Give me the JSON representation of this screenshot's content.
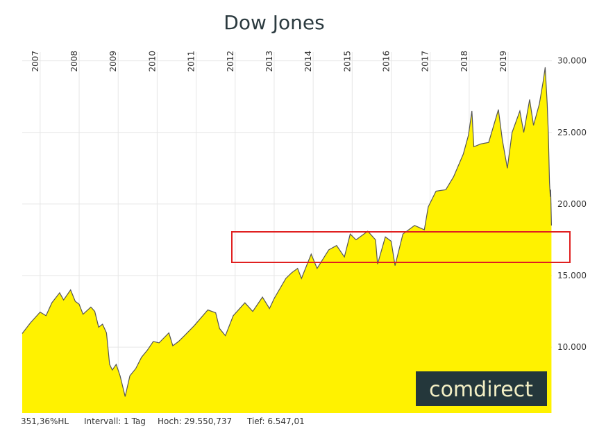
{
  "chart_data": {
    "type": "area",
    "title": "Dow Jones",
    "x": [
      2006.54,
      2006.75,
      2007.0,
      2007.15,
      2007.3,
      2007.5,
      2007.6,
      2007.78,
      2007.9,
      2008.0,
      2008.1,
      2008.3,
      2008.4,
      2008.5,
      2008.6,
      2008.7,
      2008.78,
      2008.85,
      2008.95,
      2009.05,
      2009.18,
      2009.3,
      2009.45,
      2009.6,
      2009.75,
      2009.9,
      2010.05,
      2010.3,
      2010.4,
      2010.55,
      2010.7,
      2010.95,
      2011.3,
      2011.5,
      2011.6,
      2011.75,
      2011.95,
      2012.25,
      2012.45,
      2012.7,
      2012.88,
      2013.0,
      2013.3,
      2013.45,
      2013.6,
      2013.7,
      2013.95,
      2014.1,
      2014.4,
      2014.6,
      2014.8,
      2014.95,
      2015.1,
      2015.4,
      2015.6,
      2015.65,
      2015.85,
      2016.0,
      2016.1,
      2016.3,
      2016.6,
      2016.85,
      2016.95,
      2017.15,
      2017.4,
      2017.6,
      2017.85,
      2017.98,
      2018.07,
      2018.12,
      2018.3,
      2018.5,
      2018.75,
      2018.85,
      2018.98,
      2019.1,
      2019.3,
      2019.4,
      2019.55,
      2019.65,
      2019.8,
      2019.9,
      2019.95,
      2020.0,
      2020.03,
      2020.06,
      2020.08,
      2020.09,
      2020.11
    ],
    "values": [
      10950,
      11700,
      12450,
      12200,
      13100,
      13800,
      13300,
      14000,
      13200,
      13000,
      12300,
      12800,
      12500,
      11400,
      11600,
      11000,
      8800,
      8400,
      8800,
      8000,
      6547,
      8000,
      8500,
      9300,
      9800,
      10400,
      10300,
      11000,
      10100,
      10400,
      10800,
      11500,
      12600,
      12400,
      11300,
      10800,
      12200,
      13100,
      12500,
      13500,
      12700,
      13400,
      14800,
      15200,
      15500,
      14800,
      16500,
      15500,
      16800,
      17100,
      16300,
      17900,
      17500,
      18100,
      17500,
      15800,
      17700,
      17400,
      15700,
      17900,
      18500,
      18200,
      19800,
      20900,
      21000,
      21900,
      23500,
      24800,
      26500,
      24000,
      24200,
      24300,
      26600,
      24500,
      22500,
      25000,
      26500,
      25000,
      27300,
      25500,
      27000,
      28600,
      29551,
      27000,
      25000,
      21500,
      20500,
      21000,
      18500
    ],
    "color": "#fff200",
    "line_color": "#555555",
    "xlim": [
      2006.54,
      2020.12
    ],
    "xticks": [
      2007,
      2008,
      2009,
      2010,
      2011,
      2012,
      2013,
      2014,
      2015,
      2016,
      2017,
      2018,
      2019
    ],
    "ylim": [
      5400,
      31100
    ],
    "yticks": [
      {
        "value": 10000,
        "label": "10.000"
      },
      {
        "value": 15000,
        "label": "15.000"
      },
      {
        "value": 20000,
        "label": "20.000"
      },
      {
        "value": 25000,
        "label": "25.000"
      },
      {
        "value": 30000,
        "label": "30.000"
      }
    ],
    "grid": true,
    "logo": "comdirect",
    "footer": [
      "351,36%HL",
      "Intervall: 1 Tag",
      "Hoch: 29.550,737",
      "Tief: 6.547,01"
    ]
  }
}
